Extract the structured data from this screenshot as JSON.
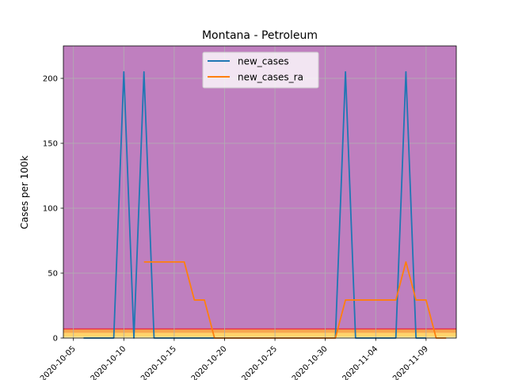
{
  "chart_data": {
    "type": "line",
    "title": "Montana - Petroleum",
    "xlabel": "",
    "ylabel": "Cases per 100k",
    "x_ticks": [
      "2020-10-05",
      "2020-10-10",
      "2020-10-15",
      "2020-10-20",
      "2020-10-25",
      "2020-10-30",
      "2020-11-04",
      "2020-11-09"
    ],
    "xlim": [
      "2020-10-04",
      "2020-11-12"
    ],
    "ylim": [
      0,
      225
    ],
    "y_ticks": [
      0,
      50,
      100,
      150,
      200
    ],
    "grid": true,
    "legend": "upper center",
    "background_bands": [
      {
        "from": 0,
        "to": 1,
        "color": "#fff2a8"
      },
      {
        "from": 1,
        "to": 4,
        "color": "#ffd36b"
      },
      {
        "from": 4,
        "to": 7,
        "color": "#f6a850"
      },
      {
        "from": 7,
        "to": 225,
        "color": "#bf7fbf"
      }
    ],
    "band_line": {
      "y": 7,
      "color": "#e8334a"
    },
    "series": [
      {
        "name": "new_cases",
        "color": "#1f77b4",
        "points": [
          [
            "2020-10-06",
            0
          ],
          [
            "2020-10-07",
            0
          ],
          [
            "2020-10-08",
            0
          ],
          [
            "2020-10-09",
            0
          ],
          [
            "2020-10-10",
            205
          ],
          [
            "2020-10-11",
            0
          ],
          [
            "2020-10-12",
            205
          ],
          [
            "2020-10-13",
            0
          ],
          [
            "2020-10-14",
            0
          ],
          [
            "2020-10-15",
            0
          ],
          [
            "2020-10-16",
            0
          ],
          [
            "2020-10-17",
            0
          ],
          [
            "2020-10-18",
            0
          ],
          [
            "2020-10-19",
            0
          ],
          [
            "2020-10-20",
            0
          ],
          [
            "2020-10-21",
            0
          ],
          [
            "2020-10-22",
            0
          ],
          [
            "2020-10-23",
            0
          ],
          [
            "2020-10-24",
            0
          ],
          [
            "2020-10-25",
            0
          ],
          [
            "2020-10-26",
            0
          ],
          [
            "2020-10-27",
            0
          ],
          [
            "2020-10-28",
            0
          ],
          [
            "2020-10-29",
            0
          ],
          [
            "2020-10-30",
            0
          ],
          [
            "2020-10-31",
            0
          ],
          [
            "2020-11-01",
            205
          ],
          [
            "2020-11-02",
            0
          ],
          [
            "2020-11-03",
            0
          ],
          [
            "2020-11-04",
            0
          ],
          [
            "2020-11-05",
            0
          ],
          [
            "2020-11-06",
            0
          ],
          [
            "2020-11-07",
            205
          ],
          [
            "2020-11-08",
            0
          ],
          [
            "2020-11-09",
            0
          ]
        ]
      },
      {
        "name": "new_cases_ra",
        "color": "#ff7f0e",
        "points": [
          [
            "2020-10-12",
            58.6
          ],
          [
            "2020-10-13",
            58.6
          ],
          [
            "2020-10-14",
            58.6
          ],
          [
            "2020-10-15",
            58.6
          ],
          [
            "2020-10-16",
            58.6
          ],
          [
            "2020-10-17",
            29.3
          ],
          [
            "2020-10-18",
            29.3
          ],
          [
            "2020-10-19",
            0
          ],
          [
            "2020-10-20",
            0
          ],
          [
            "2020-10-21",
            0
          ],
          [
            "2020-10-22",
            0
          ],
          [
            "2020-10-23",
            0
          ],
          [
            "2020-10-24",
            0
          ],
          [
            "2020-10-25",
            0
          ],
          [
            "2020-10-26",
            0
          ],
          [
            "2020-10-27",
            0
          ],
          [
            "2020-10-28",
            0
          ],
          [
            "2020-10-29",
            0
          ],
          [
            "2020-10-30",
            0
          ],
          [
            "2020-10-31",
            0
          ],
          [
            "2020-11-01",
            29.3
          ],
          [
            "2020-11-02",
            29.3
          ],
          [
            "2020-11-03",
            29.3
          ],
          [
            "2020-11-04",
            29.3
          ],
          [
            "2020-11-05",
            29.3
          ],
          [
            "2020-11-06",
            29.3
          ],
          [
            "2020-11-07",
            58.6
          ],
          [
            "2020-11-08",
            29.3
          ],
          [
            "2020-11-09",
            29.3
          ],
          [
            "2020-11-10",
            0
          ],
          [
            "2020-11-11",
            0
          ]
        ]
      }
    ]
  }
}
